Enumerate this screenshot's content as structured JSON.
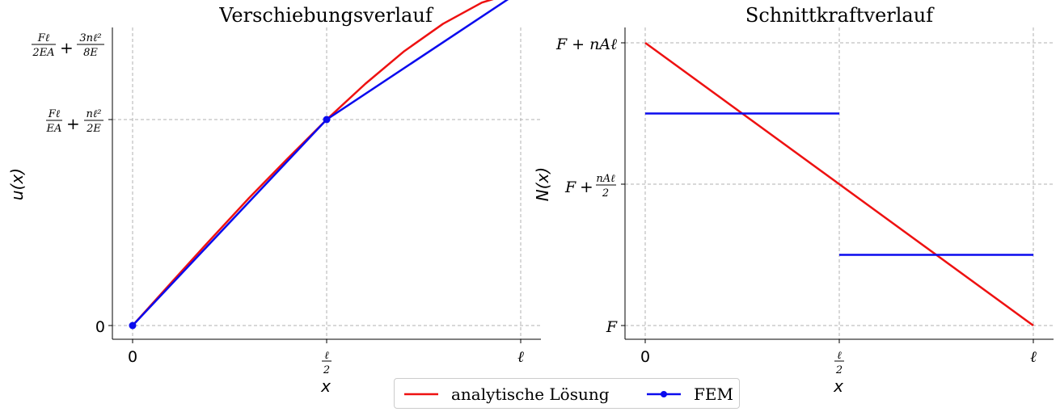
{
  "chart_data": [
    {
      "type": "line",
      "title": "Verschiebungsverlauf",
      "xlabel": "x",
      "ylabel": "u(x)",
      "grid": true,
      "x_ticks": [
        "0",
        "ℓ/2",
        "ℓ"
      ],
      "y_ticks": [
        "0",
        "Fℓ/EA + nℓ²/2E",
        "Fℓ/2EA + 3nℓ²/8E"
      ],
      "x_unit": "ℓ",
      "y_unit": "Fℓ/EA + nℓ²/2E",
      "series": [
        {
          "name": "analytische Lösung",
          "color": "#ee1111",
          "x": [
            0,
            0.1,
            0.2,
            0.3,
            0.4,
            0.5,
            0.6,
            0.7,
            0.8,
            0.9,
            1.0
          ],
          "y": [
            0,
            0.209,
            0.416,
            0.619,
            0.812,
            1.0,
            1.174,
            1.332,
            1.465,
            1.568,
            1.625
          ]
        },
        {
          "name": "FEM",
          "color": "#0b0bee",
          "marker": "circle",
          "x": [
            0,
            0.5,
            1.0
          ],
          "y": [
            0,
            1.0,
            1.625
          ]
        }
      ]
    },
    {
      "type": "line",
      "title": "Schnittkraftverlauf",
      "xlabel": "x",
      "ylabel": "N(x)",
      "grid": true,
      "x_ticks": [
        "0",
        "ℓ/2",
        "ℓ"
      ],
      "y_ticks": [
        "F",
        "F + nAℓ/2",
        "F + nAℓ"
      ],
      "x_unit": "ℓ",
      "y_unit": "nAℓ above F",
      "series": [
        {
          "name": "analytische Lösung",
          "color": "#ee1111",
          "x": [
            0,
            1.0
          ],
          "y": [
            1.0,
            0
          ]
        },
        {
          "name": "FEM",
          "color": "#0b0bee",
          "segments": [
            {
              "x": [
                0,
                0.5
              ],
              "y": [
                0.75,
                0.75
              ]
            },
            {
              "x": [
                0.5,
                1.0
              ],
              "y": [
                0.25,
                0.25
              ]
            }
          ]
        }
      ]
    }
  ],
  "legend": {
    "items": [
      {
        "label": "analytische Lösung",
        "color": "#ee1111",
        "marker": false
      },
      {
        "label": "FEM",
        "color": "#0b0bee",
        "marker": true
      }
    ]
  }
}
